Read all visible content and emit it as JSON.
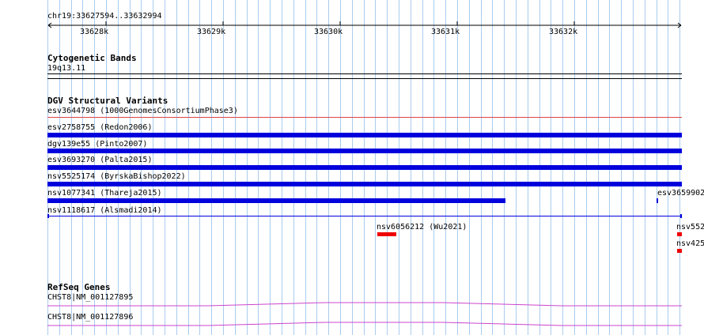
{
  "ruler": {
    "range_label": "chr19:33627594..33632994",
    "ticks": [
      "33628k",
      "33629k",
      "33630k",
      "33631k",
      "33632k"
    ]
  },
  "tracks": {
    "cytoband": {
      "title": "Cytogenetic Bands",
      "band_label": "19q13.11"
    },
    "dgv": {
      "title": "DGV Structural Variants",
      "features": [
        {
          "id": "esv3644798",
          "study": "(1000GenomesConsortiumPhase3)"
        },
        {
          "id": "esv2758755",
          "study": "(Redon2006)"
        },
        {
          "id": "dgv139e55",
          "study": "(Pinto2007)"
        },
        {
          "id": "esv3693270",
          "study": "(Palta2015)"
        },
        {
          "id": "nsv5525174",
          "study": "(ByrskaBishop2022)"
        },
        {
          "id": "nsv1077341",
          "study": "(Thareja2015)"
        },
        {
          "id": "nsv1118617",
          "study": "(Alsmadi2014)"
        },
        {
          "id": "nsv6056212",
          "study": "(Wu2021)"
        }
      ],
      "clipped_labels": [
        "esv3659902",
        "nsv552",
        "nsv425"
      ]
    },
    "refseq": {
      "title": "RefSeq Genes",
      "transcripts": [
        "CHST8|NM_001127895",
        "CHST8|NM_001127896"
      ]
    }
  },
  "colors": {
    "gain": "#0000dd",
    "loss": "#ee0000",
    "thin_loss": "#dd4444",
    "gene": "#cc44cc",
    "grid": "#aaccee"
  }
}
